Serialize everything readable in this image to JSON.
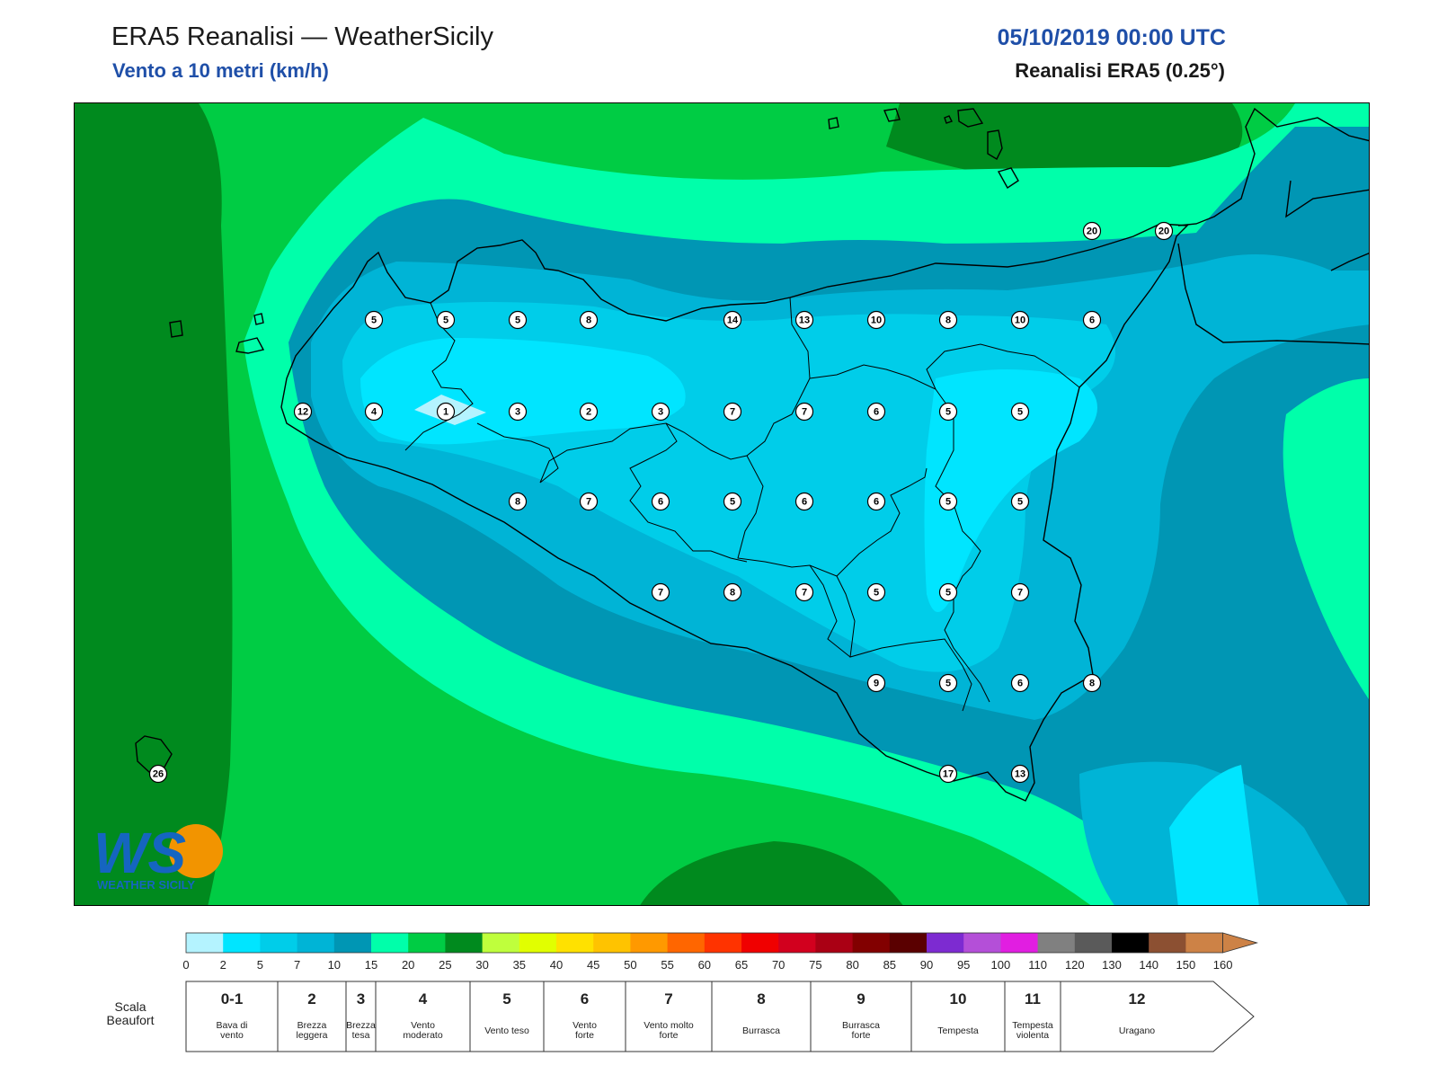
{
  "header": {
    "title": "ERA5 Reanalisi — WeatherSicily",
    "subtitle": "Vento a 10 metri (km/h)",
    "datetime": "05/10/2019 00:00 UTC",
    "source": "Reanalisi ERA5 (0.25°)"
  },
  "map": {
    "region": "Sicilia",
    "stations": [
      {
        "value": "5"
      },
      {
        "value": "5"
      },
      {
        "value": "5"
      },
      {
        "value": "8"
      },
      {
        "value": "14"
      },
      {
        "value": "13"
      },
      {
        "value": "10"
      },
      {
        "value": "8"
      },
      {
        "value": "10"
      },
      {
        "value": "6"
      },
      {
        "value": "12"
      },
      {
        "value": "4"
      },
      {
        "value": "1"
      },
      {
        "value": "3"
      },
      {
        "value": "2"
      },
      {
        "value": "3"
      },
      {
        "value": "7"
      },
      {
        "value": "7"
      },
      {
        "value": "6"
      },
      {
        "value": "5"
      },
      {
        "value": "5"
      },
      {
        "value": "8"
      },
      {
        "value": "7"
      },
      {
        "value": "6"
      },
      {
        "value": "5"
      },
      {
        "value": "6"
      },
      {
        "value": "6"
      },
      {
        "value": "5"
      },
      {
        "value": "5"
      },
      {
        "value": "7"
      },
      {
        "value": "8"
      },
      {
        "value": "7"
      },
      {
        "value": "5"
      },
      {
        "value": "5"
      },
      {
        "value": "7"
      },
      {
        "value": "9"
      },
      {
        "value": "5"
      },
      {
        "value": "6"
      },
      {
        "value": "8"
      },
      {
        "value": "17"
      },
      {
        "value": "13"
      },
      {
        "value": "20"
      },
      {
        "value": "20"
      },
      {
        "value": "26"
      }
    ]
  },
  "logo": {
    "letters": "WS",
    "text": "WEATHER SICILY"
  },
  "colorbar": {
    "ticks": [
      "0",
      "2",
      "5",
      "7",
      "10",
      "15",
      "20",
      "25",
      "30",
      "35",
      "40",
      "45",
      "50",
      "55",
      "60",
      "65",
      "70",
      "75",
      "80",
      "85",
      "90",
      "95",
      "100",
      "110",
      "120",
      "130",
      "140",
      "150",
      "160"
    ],
    "colors": [
      "#b4f3ff",
      "#00e5ff",
      "#00cde9",
      "#00b4d6",
      "#0096b4",
      "#00ffaa",
      "#00cc44",
      "#008a1e",
      "#bfff3c",
      "#e1ff00",
      "#ffe100",
      "#ffc300",
      "#ff9900",
      "#ff6600",
      "#ff3300",
      "#f00000",
      "#d2001e",
      "#aa0014",
      "#820000",
      "#5a0000",
      "#7d2bd1",
      "#b44fd8",
      "#e11ee1",
      "#808080",
      "#5a5a5a",
      "#000000",
      "#8c5032",
      "#cd8246"
    ]
  },
  "beaufort": {
    "side_label_1": "Scala",
    "side_label_2": "Beaufort",
    "levels": [
      {
        "num": "0-1",
        "label1": "Bava di",
        "label2": "vento"
      },
      {
        "num": "2",
        "label1": "Brezza",
        "label2": "leggera"
      },
      {
        "num": "3",
        "label1": "Brezza",
        "label2": "tesa"
      },
      {
        "num": "4",
        "label1": "Vento",
        "label2": "moderato"
      },
      {
        "num": "5",
        "label1": "Vento teso",
        "label2": ""
      },
      {
        "num": "6",
        "label1": "Vento",
        "label2": "forte"
      },
      {
        "num": "7",
        "label1": "Vento molto",
        "label2": "forte"
      },
      {
        "num": "8",
        "label1": "Burrasca",
        "label2": ""
      },
      {
        "num": "9",
        "label1": "Burrasca",
        "label2": "forte"
      },
      {
        "num": "10",
        "label1": "Tempesta",
        "label2": ""
      },
      {
        "num": "11",
        "label1": "Tempesta",
        "label2": "violenta"
      },
      {
        "num": "12",
        "label1": "Uragano",
        "label2": ""
      }
    ]
  }
}
